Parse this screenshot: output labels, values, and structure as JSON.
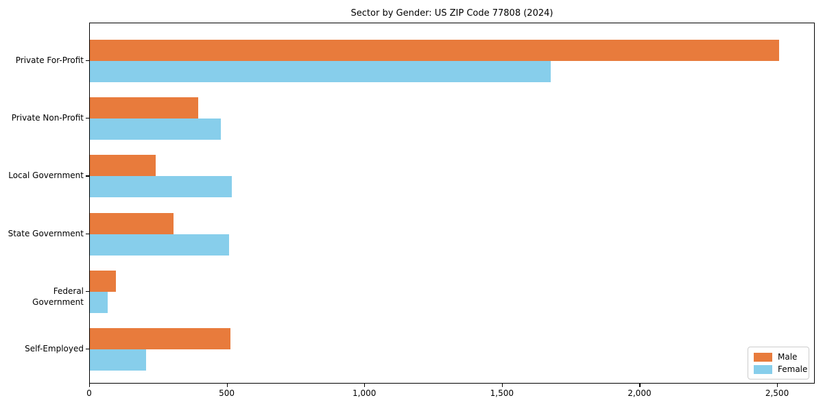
{
  "chart_data": {
    "type": "bar",
    "orientation": "horizontal",
    "title": "Sector by Gender: US ZIP Code 77808 (2024)",
    "categories": [
      "Private For-Profit",
      "Private Non-Profit",
      "Local Government",
      "State Government",
      "Federal Government",
      "Self-Employed"
    ],
    "series": [
      {
        "name": "Male",
        "color": "#e87b3c",
        "values": [
          2505,
          395,
          240,
          305,
          95,
          510
        ]
      },
      {
        "name": "Female",
        "color": "#87ceeb",
        "values": [
          1675,
          475,
          515,
          505,
          65,
          205
        ]
      }
    ],
    "xlabel": "",
    "ylabel": "",
    "xlim": [
      0,
      2637
    ],
    "x_ticks": [
      0,
      500,
      1000,
      1500,
      2000,
      2500
    ],
    "x_tick_labels": [
      "0",
      "500",
      "1,000",
      "1,500",
      "2,000",
      "2,500"
    ],
    "grid": false,
    "legend_position": "lower right",
    "axis_color": "#000000",
    "background_color": "#ffffff"
  }
}
